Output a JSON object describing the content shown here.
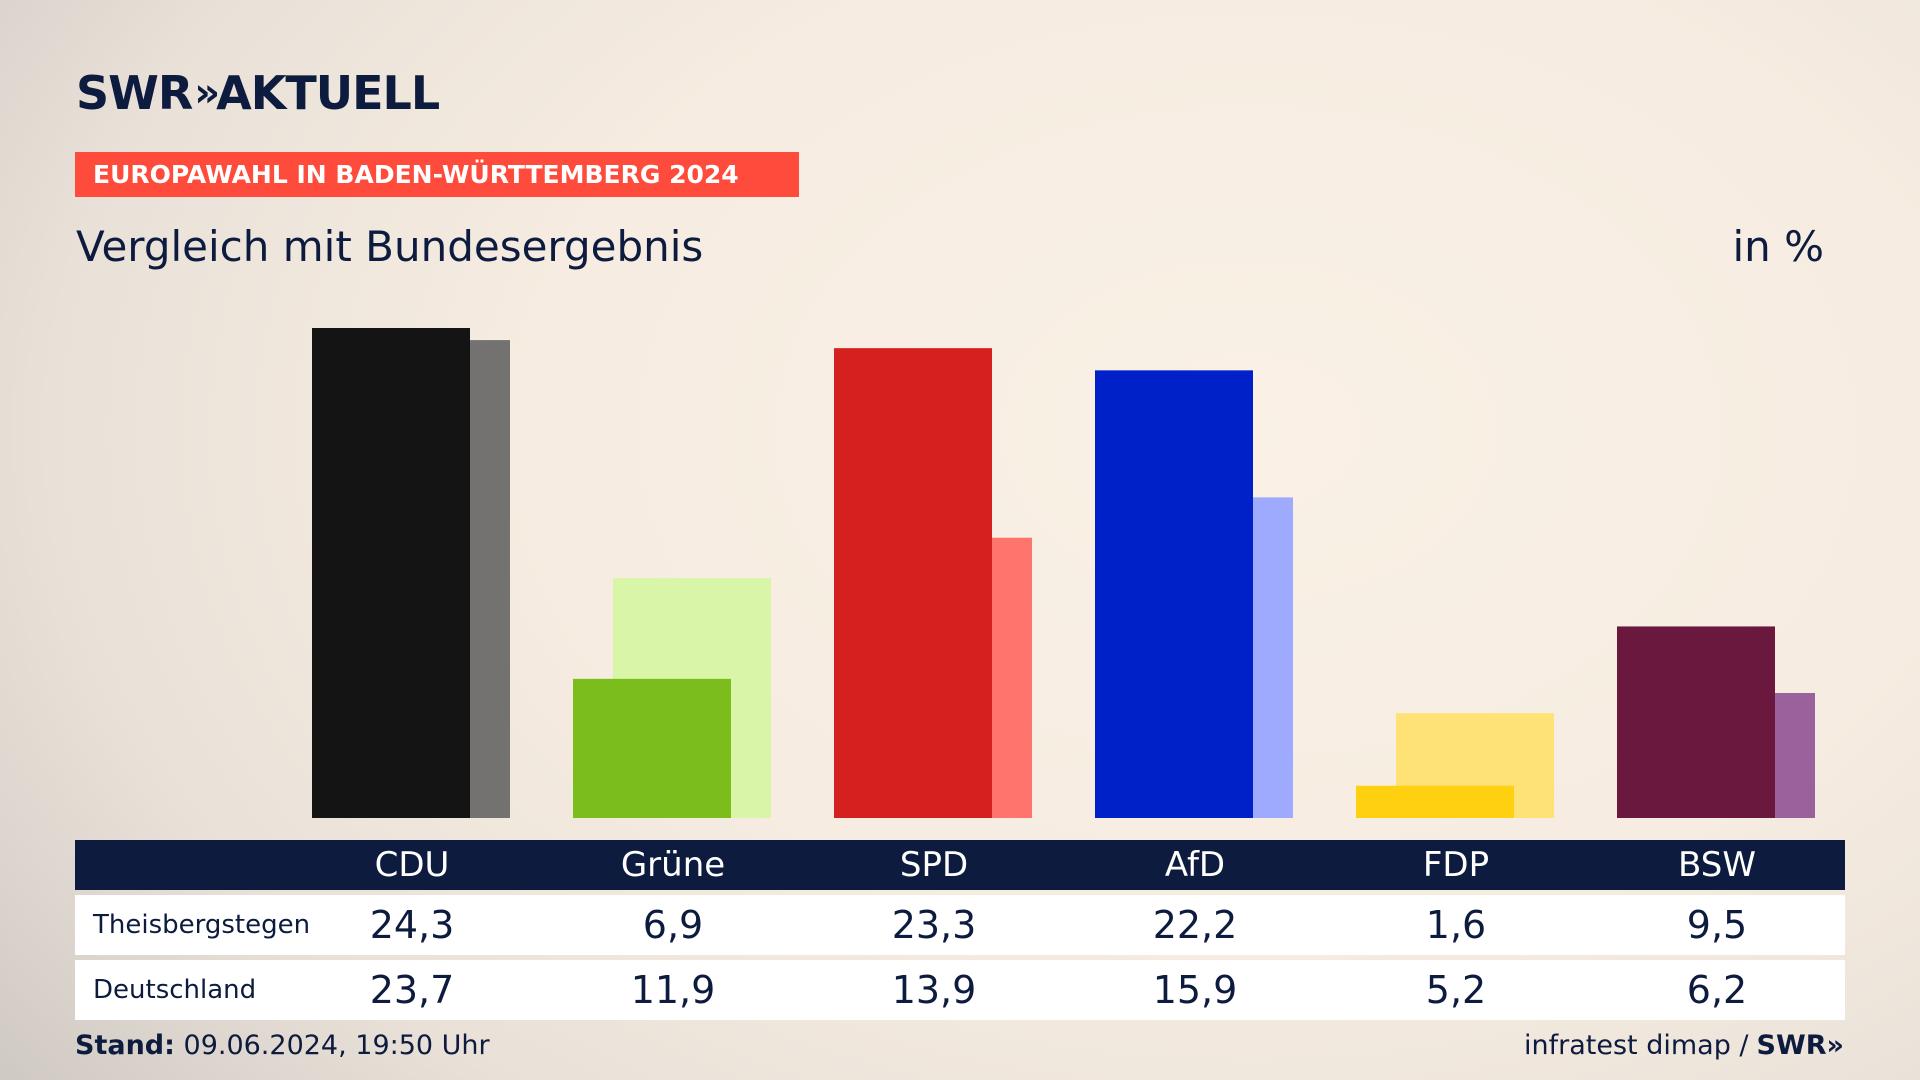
{
  "brand": {
    "logo_left": "SWR",
    "logo_arrows": "»",
    "logo_right": "AKTUELL"
  },
  "tag": "EUROPAWAHL IN BADEN-WÜRTTEMBERG 2024",
  "subtitle": "Vergleich mit Bundesergebnis",
  "unit": "in %",
  "colors": {
    "CDU": [
      "#141414",
      "#737270"
    ],
    "Grüne": [
      "#7abd1c",
      "#d8f5a8"
    ],
    "SPD": [
      "#d61f1f",
      "#ff756e"
    ],
    "AfD": [
      "#0020c8",
      "#9daafe"
    ],
    "FDP": [
      "#ffd00f",
      "#ffe275"
    ],
    "BSW": [
      "#6a183e",
      "#9b619c"
    ]
  },
  "chart_data": {
    "type": "bar",
    "categories": [
      "CDU",
      "Grüne",
      "SPD",
      "AfD",
      "FDP",
      "BSW"
    ],
    "series": [
      {
        "name": "Theisbergstegen",
        "values": [
          24.3,
          6.9,
          23.3,
          22.2,
          1.6,
          9.5
        ],
        "labels": [
          "24,3",
          "6,9",
          "23,3",
          "22,2",
          "1,6",
          "9,5"
        ]
      },
      {
        "name": "Deutschland",
        "values": [
          23.7,
          11.9,
          13.9,
          15.9,
          5.2,
          6.2
        ],
        "labels": [
          "23,7",
          "11,9",
          "13,9",
          "15,9",
          "5,2",
          "6,2"
        ]
      }
    ],
    "ylim": [
      0,
      24.3
    ]
  },
  "footer": {
    "stand_label": "Stand:",
    "stand_value": "09.06.2024, 19:50 Uhr",
    "source": "infratest dimap /",
    "source_brand": "SWR»"
  }
}
